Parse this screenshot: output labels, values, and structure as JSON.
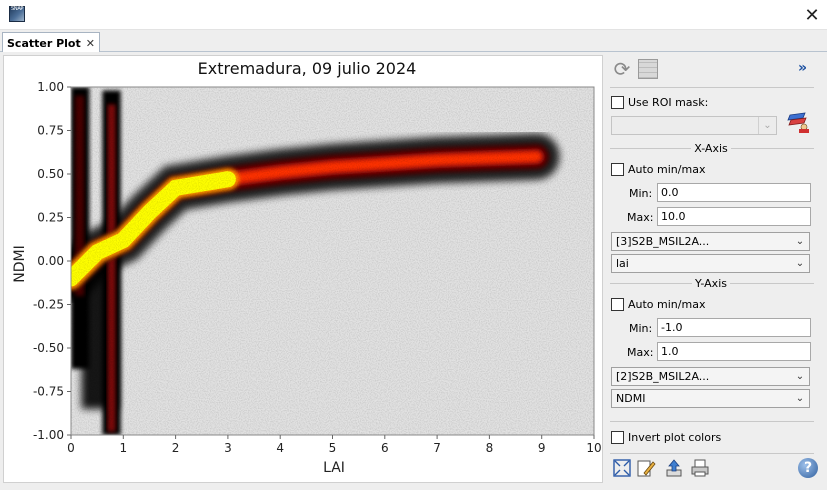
{
  "window": {
    "app_icon_text": "SNAP",
    "close_glyph": "✕"
  },
  "tab": {
    "label": "Scatter Plot",
    "close_glyph": "✕"
  },
  "chart_data": {
    "type": "scatter",
    "title": "Extremadura, 09 julio 2024",
    "xlabel": "LAI",
    "ylabel": "NDMI",
    "xlim": [
      0,
      10
    ],
    "ylim": [
      -1.0,
      1.0
    ],
    "x_ticks": [
      "0",
      "1",
      "2",
      "3",
      "4",
      "5",
      "6",
      "7",
      "8",
      "9",
      "10"
    ],
    "y_ticks": [
      "1.00",
      "0.75",
      "0.50",
      "0.25",
      "0.00",
      "-0.25",
      "-0.50",
      "-0.75",
      "-1.00"
    ],
    "background": "#e2e2e2",
    "density_colors": [
      "#000000",
      "#4a0000",
      "#a01010",
      "#ff3000",
      "#ff9a00",
      "#ffff00"
    ],
    "density_main_curve": [
      {
        "x": 0.0,
        "y": -0.1
      },
      {
        "x": 0.5,
        "y": 0.05
      },
      {
        "x": 1.0,
        "y": 0.12
      },
      {
        "x": 1.5,
        "y": 0.28
      },
      {
        "x": 2.0,
        "y": 0.42
      },
      {
        "x": 3.0,
        "y": 0.47
      },
      {
        "x": 4.0,
        "y": 0.51
      },
      {
        "x": 5.0,
        "y": 0.54
      },
      {
        "x": 6.0,
        "y": 0.56
      },
      {
        "x": 7.0,
        "y": 0.58
      },
      {
        "x": 8.0,
        "y": 0.59
      },
      {
        "x": 8.9,
        "y": 0.6
      }
    ]
  },
  "side_panel": {
    "refresh_icon": "refresh-icon",
    "table_icon": "table-icon",
    "collapse_glyph": "»",
    "use_roi_mask_label": "Use ROI mask:",
    "roi_combo_value": "",
    "x_axis_title": "X-Axis",
    "x_auto_label": "Auto min/max",
    "x_min_label": "Min:",
    "x_min_value": "0.0",
    "x_max_label": "Max:",
    "x_max_value": "10.0",
    "x_product": "[3]S2B_MSIL2A...",
    "x_band": "lai",
    "y_axis_title": "Y-Axis",
    "y_auto_label": "Auto min/max",
    "y_min_label": "Min:",
    "y_min_value": "-1.0",
    "y_max_label": "Max:",
    "y_max_value": "1.0",
    "y_product": "[2]S2B_MSIL2A...",
    "y_band": "NDMI",
    "invert_label": "Invert plot colors",
    "help_glyph": "?"
  }
}
